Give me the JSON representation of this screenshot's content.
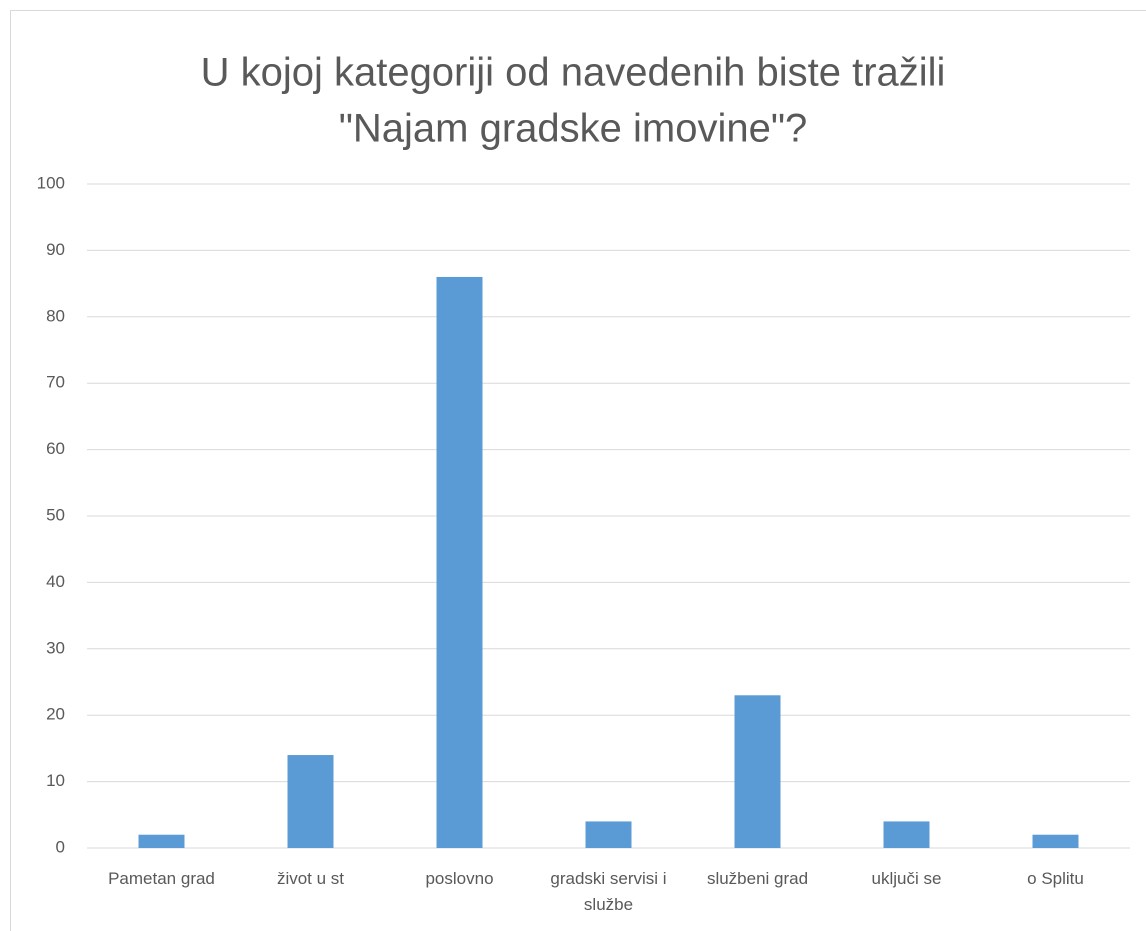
{
  "chart_data": {
    "type": "bar",
    "title": [
      "U kojoj kategoriji od navedenih biste tražili",
      "\"Najam gradske imovine\"?"
    ],
    "categories": [
      "Pametan grad",
      "život u st",
      "poslovno",
      "gradski servisi i službe",
      "službeni grad",
      "uključi se",
      "o Splitu"
    ],
    "values": [
      2,
      14,
      86,
      4,
      23,
      4,
      2
    ],
    "color": "#5b9bd5",
    "ylim": [
      0,
      100
    ],
    "yticks": [
      0,
      10,
      20,
      30,
      40,
      50,
      60,
      70,
      80,
      90,
      100
    ],
    "grid": true
  }
}
